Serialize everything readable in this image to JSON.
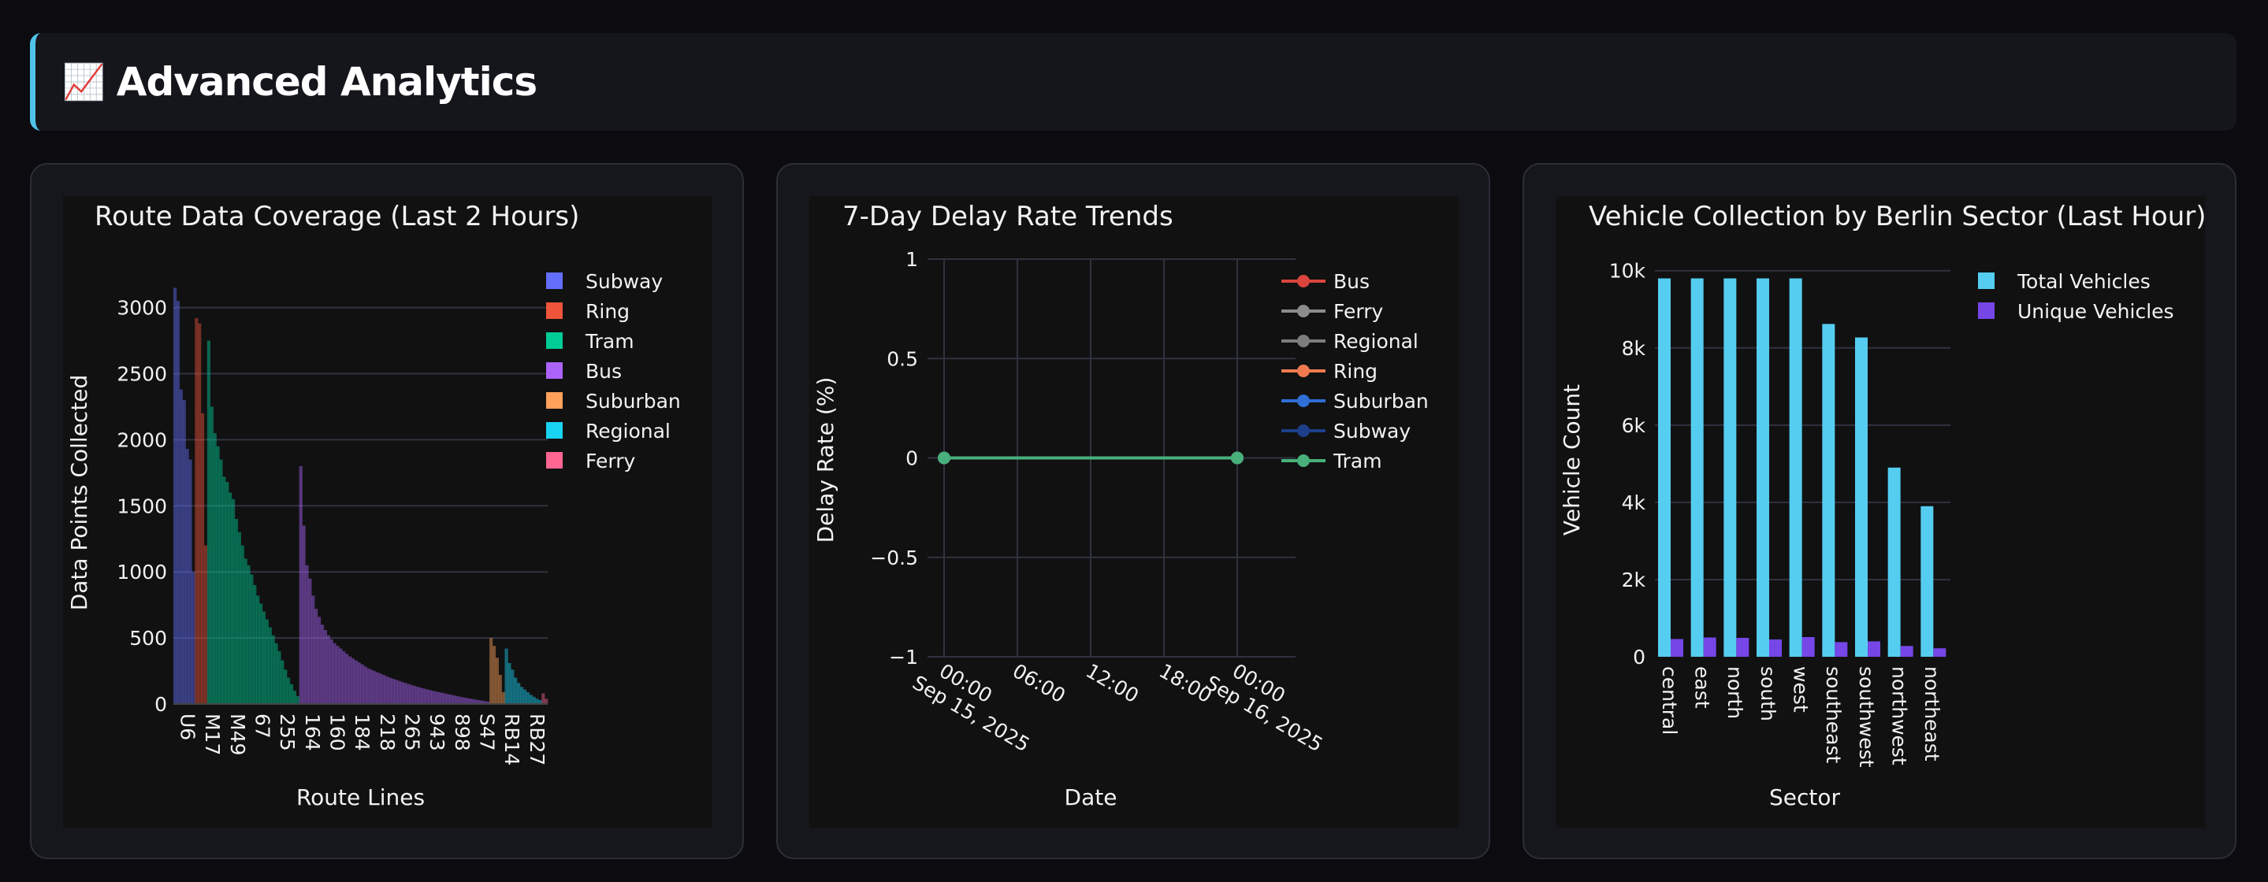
{
  "header": {
    "icon": "📈",
    "title": "Advanced Analytics",
    "accent_color": "#4fc3e8"
  },
  "chart_data": [
    {
      "type": "area",
      "title": "Route Data Coverage (Last 2 Hours)",
      "xlabel": "Route Lines",
      "ylabel": "Data Points Collected",
      "ylim": [
        0,
        3200
      ],
      "yticks": [
        0,
        500,
        1000,
        1500,
        2000,
        2500,
        3000
      ],
      "xtick_labels": [
        "U6",
        "M17",
        "M49",
        "67",
        "255",
        "164",
        "160",
        "184",
        "218",
        "265",
        "943",
        "898",
        "S47",
        "RB14",
        "RB27"
      ],
      "grid": true,
      "legend_position": "right",
      "series": [
        {
          "name": "Subway",
          "color": "#636efa",
          "values": [
            3150,
            3050,
            2380,
            2300,
            1930,
            1850,
            1000
          ]
        },
        {
          "name": "Ring",
          "color": "#ef553b",
          "values": [
            2920,
            2880,
            2200,
            1200
          ]
        },
        {
          "name": "Tram",
          "color": "#00cc96",
          "values": [
            2750,
            2250,
            2050,
            1950,
            1850,
            1720,
            1680,
            1600,
            1550,
            1400,
            1300,
            1200,
            1100,
            1050,
            980,
            900,
            820,
            760,
            700,
            640,
            580,
            520,
            460,
            400,
            330,
            260,
            200,
            150,
            100,
            60
          ]
        },
        {
          "name": "Bus",
          "color": "#ab63fa",
          "values": [
            1800,
            1350,
            1050,
            950,
            820,
            720,
            660,
            600,
            560,
            520,
            490,
            460,
            440,
            420,
            400,
            380,
            360,
            345,
            330,
            315,
            300,
            285,
            270,
            260,
            250,
            240,
            230,
            220,
            210,
            200,
            192,
            184,
            176,
            168,
            160,
            152,
            145,
            138,
            131,
            124,
            118,
            112,
            106,
            100,
            95,
            90,
            85,
            80,
            75,
            70,
            65,
            60,
            55,
            50,
            46,
            42,
            38,
            34,
            30,
            26,
            22,
            18
          ]
        },
        {
          "name": "Suburban",
          "color": "#ffa15a",
          "values": [
            500,
            440,
            350,
            220,
            90
          ]
        },
        {
          "name": "Regional",
          "color": "#19d3f3",
          "values": [
            420,
            310,
            260,
            200,
            160,
            130,
            110,
            90,
            70,
            55,
            40,
            30
          ]
        },
        {
          "name": "Ferry",
          "color": "#ff6692",
          "values": [
            80,
            40
          ]
        }
      ]
    },
    {
      "type": "line",
      "title": "7-Day Delay Rate Trends",
      "xlabel": "Date",
      "ylabel": "Delay Rate (%)",
      "ylim": [
        -1,
        1
      ],
      "yticks": [
        -1,
        -0.5,
        0,
        0.5,
        1
      ],
      "ytick_labels": [
        "−1",
        "−0.5",
        "0",
        "0.5",
        "1"
      ],
      "xtick_labels": [
        [
          "00:00",
          "Sep 15, 2025"
        ],
        [
          "06:00"
        ],
        [
          "12:00"
        ],
        [
          "18:00"
        ],
        [
          "00:00",
          "Sep 16, 2025"
        ]
      ],
      "grid": true,
      "legend_position": "right",
      "series": [
        {
          "name": "Bus",
          "color": "#d9453c",
          "x": [
            "2025-09-15 00:00",
            "2025-09-16 00:00"
          ],
          "values": [
            0,
            0
          ]
        },
        {
          "name": "Ferry",
          "color": "#8c8c8c",
          "x": [
            "2025-09-15 00:00",
            "2025-09-16 00:00"
          ],
          "values": [
            0,
            0
          ]
        },
        {
          "name": "Regional",
          "color": "#7d7d7d",
          "x": [
            "2025-09-15 00:00",
            "2025-09-16 00:00"
          ],
          "values": [
            0,
            0
          ]
        },
        {
          "name": "Ring",
          "color": "#f07a4f",
          "x": [
            "2025-09-15 00:00",
            "2025-09-16 00:00"
          ],
          "values": [
            0,
            0
          ]
        },
        {
          "name": "Suburban",
          "color": "#2f6fd6",
          "x": [
            "2025-09-15 00:00",
            "2025-09-16 00:00"
          ],
          "values": [
            0,
            0
          ]
        },
        {
          "name": "Subway",
          "color": "#1d3f8a",
          "x": [
            "2025-09-15 00:00",
            "2025-09-16 00:00"
          ],
          "values": [
            0,
            0
          ]
        },
        {
          "name": "Tram",
          "color": "#48b07a",
          "x": [
            "2025-09-15 00:00",
            "2025-09-16 00:00"
          ],
          "values": [
            0,
            0
          ]
        }
      ]
    },
    {
      "type": "bar",
      "title": "Vehicle Collection by Berlin Sector (Last Hour)",
      "xlabel": "Sector",
      "ylabel": "Vehicle Count",
      "ylim": [
        0,
        10300
      ],
      "yticks": [
        0,
        2000,
        4000,
        6000,
        8000,
        10000
      ],
      "ytick_labels": [
        "0",
        "2k",
        "4k",
        "6k",
        "8k",
        "10k"
      ],
      "categories": [
        "central",
        "east",
        "north",
        "south",
        "west",
        "southeast",
        "southwest",
        "northwest",
        "northeast"
      ],
      "grid": true,
      "legend_position": "right",
      "series": [
        {
          "name": "Total Vehicles",
          "color": "#55cdf0",
          "values": [
            9800,
            9800,
            9800,
            9800,
            9800,
            8620,
            8270,
            4900,
            3900
          ]
        },
        {
          "name": "Unique Vehicles",
          "color": "#7646e6",
          "values": [
            460,
            500,
            490,
            450,
            510,
            380,
            400,
            280,
            220
          ]
        }
      ]
    }
  ]
}
